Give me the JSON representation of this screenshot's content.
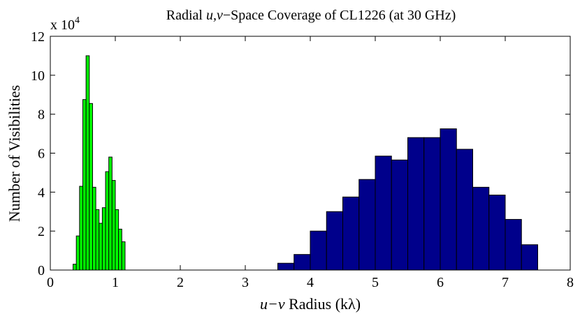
{
  "chart_data": {
    "type": "bar",
    "title": "Radial  u,v−Space Coverage of CL1226 (at 30 GHz)",
    "title_parts": [
      "Radial  ",
      "u,v",
      "−Space Coverage of CL1226 (at 30 GHz)"
    ],
    "xlabel": "u−v Radius (kλ)",
    "xlabel_parts": [
      "u−v",
      " Radius (kλ)"
    ],
    "ylabel": "Number of Visibilities",
    "y_multiplier_base": "x 10",
    "y_multiplier_exp": "4",
    "xlim": [
      0,
      8
    ],
    "ylim": [
      0,
      12
    ],
    "xticks": [
      0,
      1,
      2,
      3,
      4,
      5,
      6,
      7,
      8
    ],
    "yticks": [
      0,
      2,
      4,
      6,
      8,
      10,
      12
    ],
    "grid": false,
    "series": [
      {
        "color": "#00ff00",
        "bin_width": 0.05,
        "x": [
          0.375,
          0.425,
          0.475,
          0.525,
          0.575,
          0.625,
          0.675,
          0.725,
          0.775,
          0.825,
          0.875,
          0.925,
          0.975,
          1.025,
          1.075,
          1.125,
          1.175,
          1.225,
          1.275
        ],
        "values": [
          0.3,
          1.75,
          4.3,
          8.75,
          11.0,
          8.55,
          4.25,
          3.1,
          2.4,
          3.2,
          5.05,
          5.8,
          4.6,
          3.1,
          2.1,
          1.45,
          0,
          0,
          0
        ]
      },
      {
        "color": "#00008b",
        "bin_width": 0.25,
        "x": [
          3.625,
          3.875,
          4.125,
          4.375,
          4.625,
          4.875,
          5.125,
          5.375,
          5.625,
          5.875,
          6.125,
          6.375,
          6.625,
          6.875,
          7.125,
          7.375
        ],
        "values": [
          0.35,
          0.8,
          2.0,
          3.0,
          3.75,
          4.65,
          5.85,
          5.65,
          6.8,
          6.8,
          7.25,
          6.2,
          4.25,
          3.85,
          2.6,
          1.3
        ]
      }
    ]
  }
}
